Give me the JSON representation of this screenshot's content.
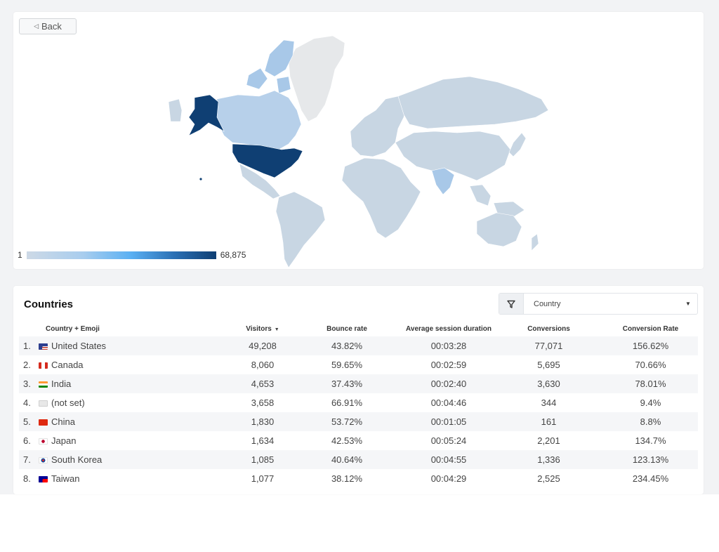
{
  "back_button": {
    "label": "Back"
  },
  "map": {
    "legend_min": "1",
    "legend_max": "68,875",
    "colors": {
      "max": "#0f3f73",
      "high": "#1a4f85",
      "mid": "#a8c8e8",
      "low": "#c8d6e3",
      "none": "#e6e8ea"
    }
  },
  "table": {
    "title": "Countries",
    "filter": {
      "label": "Country",
      "icon": "filter-icon"
    },
    "columns": [
      "Country + Emoji",
      "Visitors",
      "Bounce rate",
      "Average session duration",
      "Conversions",
      "Conversion Rate"
    ],
    "rows": [
      {
        "index": "1.",
        "flag": "us",
        "country": "United States",
        "visitors": "49,208",
        "bounce": "43.82%",
        "duration": "00:03:28",
        "conversions": "77,071",
        "rate": "156.62%"
      },
      {
        "index": "2.",
        "flag": "ca",
        "country": "Canada",
        "visitors": "8,060",
        "bounce": "59.65%",
        "duration": "00:02:59",
        "conversions": "5,695",
        "rate": "70.66%"
      },
      {
        "index": "3.",
        "flag": "in",
        "country": "India",
        "visitors": "4,653",
        "bounce": "37.43%",
        "duration": "00:02:40",
        "conversions": "3,630",
        "rate": "78.01%"
      },
      {
        "index": "4.",
        "flag": "notset",
        "country": "(not set)",
        "visitors": "3,658",
        "bounce": "66.91%",
        "duration": "00:04:46",
        "conversions": "344",
        "rate": "9.4%"
      },
      {
        "index": "5.",
        "flag": "cn",
        "country": "China",
        "visitors": "1,830",
        "bounce": "53.72%",
        "duration": "00:01:05",
        "conversions": "161",
        "rate": "8.8%"
      },
      {
        "index": "6.",
        "flag": "jp",
        "country": "Japan",
        "visitors": "1,634",
        "bounce": "42.53%",
        "duration": "00:05:24",
        "conversions": "2,201",
        "rate": "134.7%"
      },
      {
        "index": "7.",
        "flag": "kr",
        "country": "South Korea",
        "visitors": "1,085",
        "bounce": "40.64%",
        "duration": "00:04:55",
        "conversions": "1,336",
        "rate": "123.13%"
      },
      {
        "index": "8.",
        "flag": "tw",
        "country": "Taiwan",
        "visitors": "1,077",
        "bounce": "38.12%",
        "duration": "00:04:29",
        "conversions": "2,525",
        "rate": "234.45%"
      }
    ]
  }
}
